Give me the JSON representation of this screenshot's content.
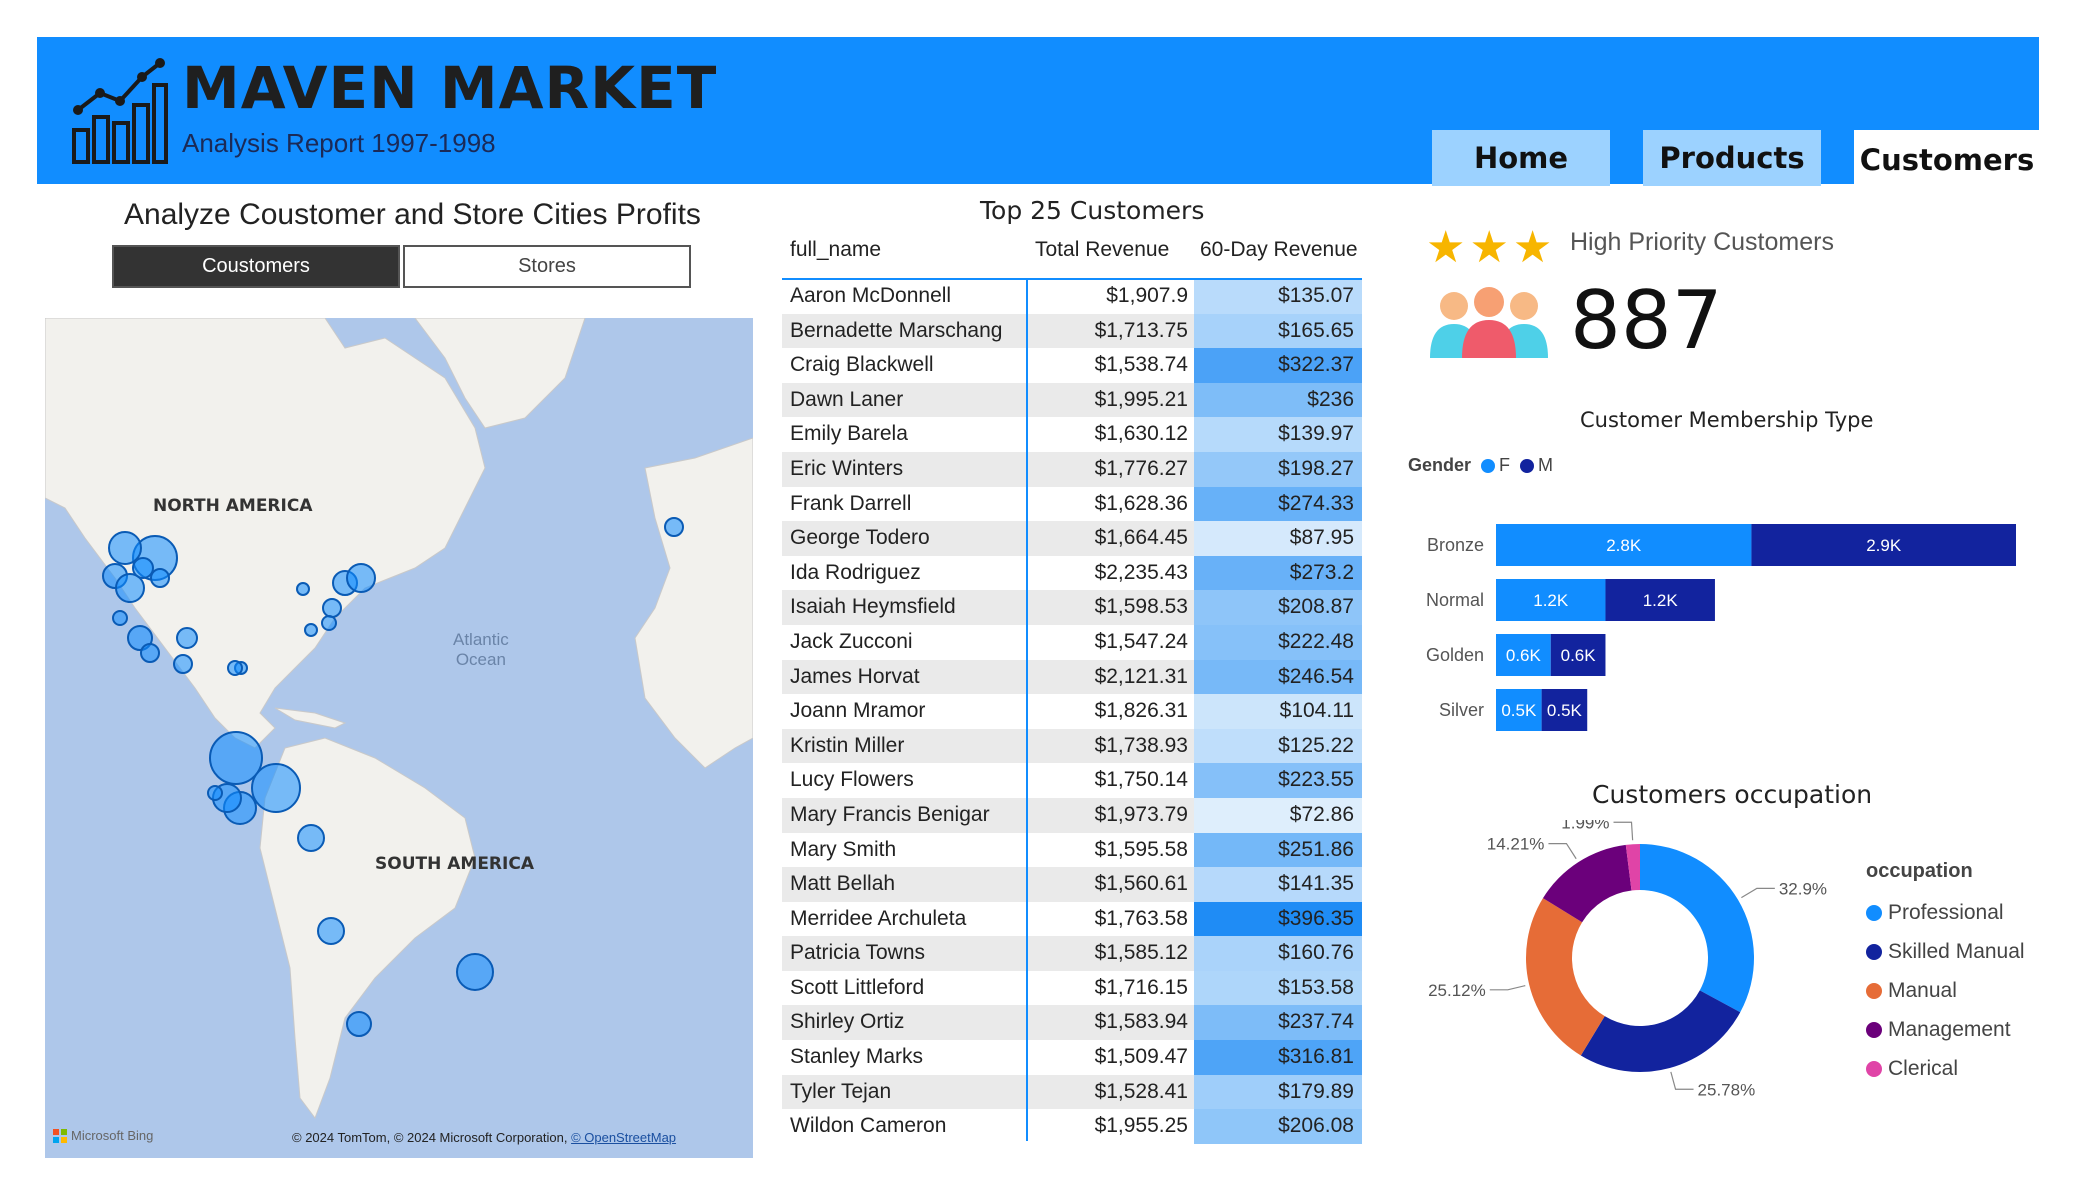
{
  "header": {
    "title": "MAVEN MARKET",
    "subtitle": "Analysis Report 1997-1998",
    "tabs": [
      {
        "label": "Home",
        "active": false
      },
      {
        "label": "Products",
        "active": false
      },
      {
        "label": "Customers",
        "active": true
      }
    ],
    "icon": "chart-growth-icon",
    "accent": "#118dff"
  },
  "analyze": {
    "title": "Analyze Coustomer and Store Cities Profits",
    "toggle": [
      {
        "label": "Coustomers",
        "selected": true
      },
      {
        "label": "Stores",
        "selected": false
      }
    ]
  },
  "map": {
    "labels": {
      "north_america": "NORTH AMERICA",
      "south_america": "SOUTH AMERICA",
      "ocean_line1": "Atlantic",
      "ocean_line2": "Ocean"
    },
    "brand": "Microsoft Bing",
    "credit": "© 2024 TomTom, © 2024 Microsoft Corporation,",
    "credit_link": "© OpenStreetMap"
  },
  "top_customers": {
    "title": "Top 25 Customers",
    "columns": [
      "full_name",
      "Total Revenue",
      "60-Day Revenue"
    ],
    "rows": [
      {
        "name": "Aaron McDonnell",
        "total": "$1,907.9",
        "d60": "$135.07",
        "d60_value": 135.07
      },
      {
        "name": "Bernadette Marschang",
        "total": "$1,713.75",
        "d60": "$165.65",
        "d60_value": 165.65
      },
      {
        "name": "Craig Blackwell",
        "total": "$1,538.74",
        "d60": "$322.37",
        "d60_value": 322.37
      },
      {
        "name": "Dawn Laner",
        "total": "$1,995.21",
        "d60": "$236",
        "d60_value": 236
      },
      {
        "name": "Emily Barela",
        "total": "$1,630.12",
        "d60": "$139.97",
        "d60_value": 139.97
      },
      {
        "name": "Eric Winters",
        "total": "$1,776.27",
        "d60": "$198.27",
        "d60_value": 198.27
      },
      {
        "name": "Frank Darrell",
        "total": "$1,628.36",
        "d60": "$274.33",
        "d60_value": 274.33
      },
      {
        "name": "George Todero",
        "total": "$1,664.45",
        "d60": "$87.95",
        "d60_value": 87.95
      },
      {
        "name": "Ida Rodriguez",
        "total": "$2,235.43",
        "d60": "$273.2",
        "d60_value": 273.2
      },
      {
        "name": "Isaiah Heymsfield",
        "total": "$1,598.53",
        "d60": "$208.87",
        "d60_value": 208.87
      },
      {
        "name": "Jack Zucconi",
        "total": "$1,547.24",
        "d60": "$222.48",
        "d60_value": 222.48
      },
      {
        "name": "James Horvat",
        "total": "$2,121.31",
        "d60": "$246.54",
        "d60_value": 246.54
      },
      {
        "name": "Joann Mramor",
        "total": "$1,826.31",
        "d60": "$104.11",
        "d60_value": 104.11
      },
      {
        "name": "Kristin Miller",
        "total": "$1,738.93",
        "d60": "$125.22",
        "d60_value": 125.22
      },
      {
        "name": "Lucy Flowers",
        "total": "$1,750.14",
        "d60": "$223.55",
        "d60_value": 223.55
      },
      {
        "name": "Mary Francis Benigar",
        "total": "$1,973.79",
        "d60": "$72.86",
        "d60_value": 72.86
      },
      {
        "name": "Mary Smith",
        "total": "$1,595.58",
        "d60": "$251.86",
        "d60_value": 251.86
      },
      {
        "name": "Matt Bellah",
        "total": "$1,560.61",
        "d60": "$141.35",
        "d60_value": 141.35
      },
      {
        "name": "Merridee Archuleta",
        "total": "$1,763.58",
        "d60": "$396.35",
        "d60_value": 396.35
      },
      {
        "name": "Patricia Towns",
        "total": "$1,585.12",
        "d60": "$160.76",
        "d60_value": 160.76
      },
      {
        "name": "Scott Littleford",
        "total": "$1,716.15",
        "d60": "$153.58",
        "d60_value": 153.58
      },
      {
        "name": "Shirley Ortiz",
        "total": "$1,583.94",
        "d60": "$237.74",
        "d60_value": 237.74
      },
      {
        "name": "Stanley Marks",
        "total": "$1,509.47",
        "d60": "$316.81",
        "d60_value": 316.81
      },
      {
        "name": "Tyler Tejan",
        "total": "$1,528.41",
        "d60": "$179.89",
        "d60_value": 179.89
      },
      {
        "name": "Wildon Cameron",
        "total": "$1,955.25",
        "d60": "$206.08",
        "d60_value": 206.08
      }
    ]
  },
  "kpi": {
    "label": "High Priority Customers",
    "value": "887",
    "stars": 3
  },
  "membership": {
    "title": "Customer Membership Type",
    "legend_title": "Gender",
    "legend": [
      {
        "name": "F",
        "color": "#118dff"
      },
      {
        "name": "M",
        "color": "#12239e"
      }
    ]
  },
  "occupation": {
    "title": "Customers occupation",
    "legend_title": "occupation"
  },
  "chart_data": [
    {
      "type": "bar",
      "orientation": "horizontal",
      "stacked": true,
      "title": "Customer Membership Type",
      "categories": [
        "Bronze",
        "Normal",
        "Golden",
        "Silver"
      ],
      "series": [
        {
          "name": "F",
          "color": "#118dff",
          "values": [
            2800,
            1200,
            600,
            500
          ],
          "labels": [
            "2.8K",
            "1.2K",
            "0.6K",
            "0.5K"
          ]
        },
        {
          "name": "M",
          "color": "#12239e",
          "values": [
            2900,
            1200,
            600,
            500
          ],
          "labels": [
            "2.9K",
            "1.2K",
            "0.6K",
            "0.5K"
          ]
        }
      ]
    },
    {
      "type": "pie",
      "donut": true,
      "title": "Customers occupation",
      "categories": [
        "Professional",
        "Skilled Manual",
        "Manual",
        "Management",
        "Clerical"
      ],
      "values": [
        32.9,
        25.78,
        25.12,
        14.21,
        1.99
      ],
      "labels": [
        "32.9%",
        "25.78%",
        "25.12%",
        "14.21%",
        "1.99%"
      ],
      "colors": [
        "#118dff",
        "#12239e",
        "#e66c37",
        "#6b007b",
        "#e044a7"
      ]
    }
  ]
}
